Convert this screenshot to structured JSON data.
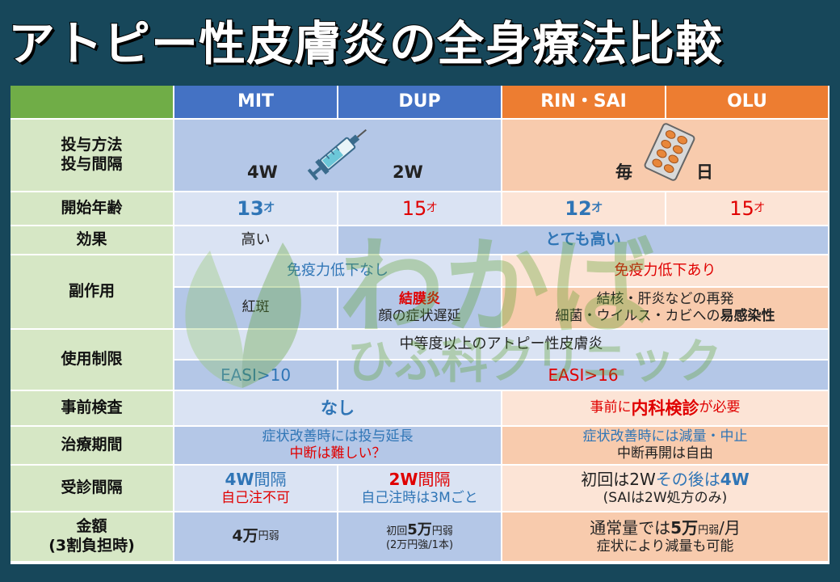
{
  "title": "アトピー性皮膚炎の全身療法比較",
  "watermark": {
    "main": "わかば",
    "sub": "ひふ科クリニック"
  },
  "headers": {
    "mit": "MIT",
    "dup": "DUP",
    "rin_sai": "RIN・SAI",
    "olu": "OLU"
  },
  "icons": {
    "syringe": "syringe-icon",
    "pills": "pill-pack-icon"
  },
  "colors": {
    "blue_header": "#4472c4",
    "orange_header": "#ed7d31",
    "label_green": "#d6e7c5",
    "emphasis_red": "#e00000",
    "emphasis_blue": "#2f75b6"
  },
  "rows": {
    "dosing": {
      "label_1": "投与方法",
      "label_2": "投与間隔",
      "mit": "4W",
      "dup": "2W",
      "rin_sai": "毎",
      "olu": "日"
    },
    "start_age": {
      "label": "開始年齢",
      "mit_num": "13",
      "mit_unit": "才",
      "dup_num": "15",
      "dup_unit": "才",
      "rin_num": "12",
      "rin_unit": "才",
      "olu_num": "15",
      "olu_unit": "才"
    },
    "effect": {
      "label": "効果",
      "mit": "高い",
      "others": "とても高い"
    },
    "side_effects": {
      "label": "副作用",
      "biologics_common": "免疫力低下なし",
      "jak_common": "免疫力低下あり",
      "mit": "紅斑",
      "dup_1": "結膜炎",
      "dup_2": "顔の症状遅延",
      "jak_1": "結核・肝炎などの再発",
      "jak_2a": "細菌・ウイルス・カビへの",
      "jak_2b": "易感染性"
    },
    "restriction": {
      "label": "使用制限",
      "common": "中等度以上のアトピー性皮膚炎",
      "mit": "EASI>10",
      "others": "EASI>16"
    },
    "pretest": {
      "label": "事前検査",
      "biologics": "なし",
      "jak_1": "事前に",
      "jak_2": "内科検診",
      "jak_3": "が必要"
    },
    "duration": {
      "label": "治療期間",
      "biologics_1": "症状改善時には投与延長",
      "biologics_2": "中断は難しい？",
      "jak_1": "症状改善時には減量・中止",
      "jak_2": "中断再開は自由"
    },
    "visits": {
      "label": "受診間隔",
      "mit_1a": "4W",
      "mit_1b": "間隔",
      "mit_2": "自己注不可",
      "dup_1a": "2W",
      "dup_1b": "間隔",
      "dup_2": "自己注時は3Mごと",
      "jak_1a": "初回は2W",
      "jak_1b": "その後は",
      "jak_1c": "4W",
      "jak_2": "(SAIは2W処方のみ)"
    },
    "cost": {
      "label_1": "金額",
      "label_2": "(3割負担時)",
      "mit_a": "4万",
      "mit_b": "円弱",
      "dup_1a": "初回",
      "dup_1b": "5万",
      "dup_1c": "円弱",
      "dup_2": "(2万円強/1本)",
      "jak_1a": "通常量では",
      "jak_1b": "5万",
      "jak_1c": "円弱",
      "jak_1d": "/月",
      "jak_2": "症状により減量も可能"
    }
  }
}
